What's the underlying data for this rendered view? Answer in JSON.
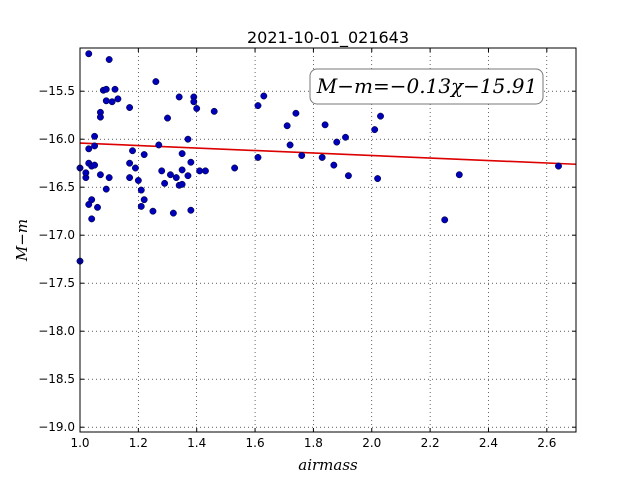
{
  "chart_data": {
    "type": "scatter",
    "title": "2021-10-01_021643",
    "xlabel": "airmass",
    "ylabel": "M−m",
    "xlim": [
      1.0,
      2.7
    ],
    "ylim": [
      -19.05,
      -15.05
    ],
    "y_inverted": true,
    "grid": true,
    "x_ticks": [
      1.0,
      1.2,
      1.4,
      1.6,
      1.8,
      2.0,
      2.2,
      2.4,
      2.6
    ],
    "x_tick_labels": [
      "1.0",
      "1.2",
      "1.4",
      "1.6",
      "1.8",
      "2.0",
      "2.2",
      "2.4",
      "2.6"
    ],
    "y_ticks": [
      -15.5,
      -16.0,
      -16.5,
      -17.0,
      -17.5,
      -18.0,
      -18.5,
      -19.0
    ],
    "y_tick_labels": [
      "−15.5",
      "−16.0",
      "−16.5",
      "−17.0",
      "−17.5",
      "−18.0",
      "−18.5",
      "−19.0"
    ],
    "annotation": "M−m=−0.13χ−15.91",
    "annotation_position": "top-right",
    "fit_line": {
      "slope": -0.13,
      "intercept": -15.91,
      "color": "#dd0000"
    },
    "point_color": "#0000bb",
    "points": [
      [
        1.0,
        -16.3
      ],
      [
        1.0,
        -17.27
      ],
      [
        1.03,
        -15.11
      ],
      [
        1.02,
        -16.4
      ],
      [
        1.02,
        -16.35
      ],
      [
        1.03,
        -16.25
      ],
      [
        1.03,
        -16.1
      ],
      [
        1.03,
        -16.68
      ],
      [
        1.04,
        -16.63
      ],
      [
        1.04,
        -16.83
      ],
      [
        1.04,
        -16.28
      ],
      [
        1.05,
        -15.97
      ],
      [
        1.05,
        -16.07
      ],
      [
        1.05,
        -16.27
      ],
      [
        1.06,
        -16.71
      ],
      [
        1.07,
        -15.72
      ],
      [
        1.07,
        -15.77
      ],
      [
        1.07,
        -16.37
      ],
      [
        1.08,
        -15.49
      ],
      [
        1.09,
        -15.48
      ],
      [
        1.09,
        -15.6
      ],
      [
        1.09,
        -16.52
      ],
      [
        1.1,
        -15.17
      ],
      [
        1.1,
        -16.4
      ],
      [
        1.11,
        -15.61
      ],
      [
        1.12,
        -15.48
      ],
      [
        1.13,
        -15.58
      ],
      [
        1.17,
        -15.67
      ],
      [
        1.17,
        -16.25
      ],
      [
        1.17,
        -16.4
      ],
      [
        1.18,
        -16.12
      ],
      [
        1.19,
        -16.3
      ],
      [
        1.2,
        -16.43
      ],
      [
        1.21,
        -16.53
      ],
      [
        1.21,
        -16.7
      ],
      [
        1.22,
        -16.16
      ],
      [
        1.22,
        -16.63
      ],
      [
        1.25,
        -16.75
      ],
      [
        1.26,
        -15.4
      ],
      [
        1.27,
        -16.06
      ],
      [
        1.28,
        -16.33
      ],
      [
        1.29,
        -16.46
      ],
      [
        1.3,
        -15.78
      ],
      [
        1.31,
        -16.37
      ],
      [
        1.32,
        -16.77
      ],
      [
        1.33,
        -16.4
      ],
      [
        1.34,
        -15.56
      ],
      [
        1.34,
        -16.48
      ],
      [
        1.35,
        -16.47
      ],
      [
        1.35,
        -16.15
      ],
      [
        1.35,
        -16.32
      ],
      [
        1.37,
        -16.38
      ],
      [
        1.37,
        -16.0
      ],
      [
        1.38,
        -16.74
      ],
      [
        1.38,
        -16.24
      ],
      [
        1.39,
        -15.56
      ],
      [
        1.39,
        -15.61
      ],
      [
        1.4,
        -15.68
      ],
      [
        1.41,
        -16.33
      ],
      [
        1.43,
        -16.33
      ],
      [
        1.46,
        -15.71
      ],
      [
        1.53,
        -16.3
      ],
      [
        1.61,
        -16.19
      ],
      [
        1.61,
        -15.65
      ],
      [
        1.63,
        -15.55
      ],
      [
        1.71,
        -15.86
      ],
      [
        1.72,
        -16.06
      ],
      [
        1.74,
        -15.73
      ],
      [
        1.76,
        -16.17
      ],
      [
        1.83,
        -16.19
      ],
      [
        1.84,
        -15.85
      ],
      [
        1.87,
        -16.27
      ],
      [
        1.88,
        -16.03
      ],
      [
        1.91,
        -15.98
      ],
      [
        1.92,
        -16.38
      ],
      [
        2.01,
        -15.9
      ],
      [
        2.02,
        -16.41
      ],
      [
        2.03,
        -15.76
      ],
      [
        2.25,
        -16.84
      ],
      [
        2.3,
        -16.37
      ],
      [
        2.64,
        -16.28
      ]
    ]
  }
}
